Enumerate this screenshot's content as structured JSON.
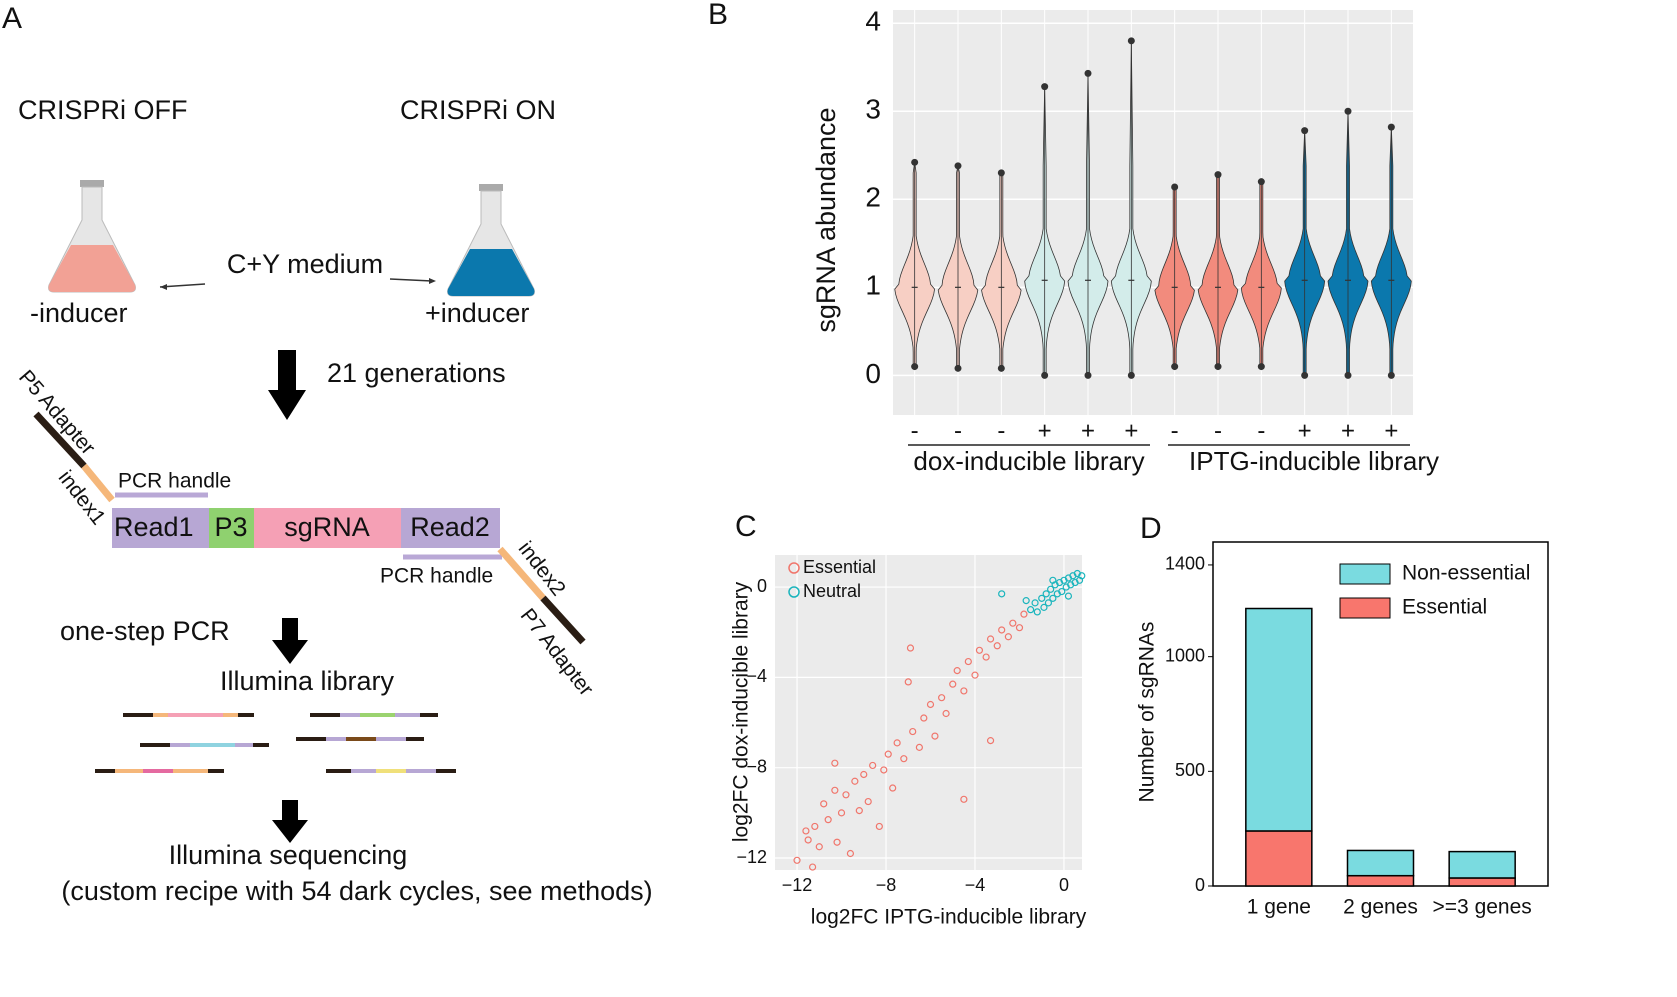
{
  "panels": [
    "A",
    "B",
    "C",
    "D"
  ],
  "panel_a": {
    "off": "CRISPRi OFF",
    "on": "CRISPRi ON",
    "medium": "C+Y medium",
    "minus": "-inducer",
    "plus": "+inducer",
    "generations": "21 generations",
    "p5": "P5 Adapter",
    "index1": "index1",
    "handle1": "PCR handle",
    "read1": "Read1",
    "p3": "P3",
    "sgrna": "sgRNA",
    "read2": "Read2",
    "handle2": "PCR handle",
    "index2": "index2",
    "p7": "P7 Adapter",
    "pcr": "one-step PCR",
    "library": "Illumina library",
    "sequencing": "Illumina sequencing",
    "recipe": "(custom recipe with 54 dark cycles, see methods)"
  },
  "chart_data": [
    {
      "type": "violin",
      "ylabel": "sgRNA abundance",
      "categories": [
        "-",
        "-",
        "-",
        "+",
        "+",
        "+",
        "-",
        "-",
        "-",
        "+",
        "+",
        "+"
      ],
      "colors": [
        "#f7cfc4",
        "#f7cfc4",
        "#f7cfc4",
        "#d3ecea",
        "#d3ecea",
        "#d3ecea",
        "#f28b7d",
        "#f28b7d",
        "#f28b7d",
        "#0b78ad",
        "#0b78ad",
        "#0b78ad"
      ],
      "median": [
        1.0,
        1.0,
        1.0,
        1.08,
        1.08,
        1.08,
        1.0,
        1.0,
        1.0,
        1.08,
        1.08,
        1.08
      ],
      "min": [
        0.1,
        0.08,
        0.08,
        0,
        0,
        0,
        0.1,
        0.1,
        0.1,
        0,
        0,
        0
      ],
      "max": [
        2.42,
        2.38,
        2.3,
        3.28,
        3.43,
        3.8,
        2.14,
        2.28,
        2.2,
        2.78,
        3.0,
        2.82
      ],
      "groups": [
        "dox-inducible library",
        "IPTG-inducible library"
      ],
      "ylim": [
        -0.45,
        4.15
      ],
      "yticks": [
        0,
        1,
        2,
        3,
        4
      ],
      "grid": true
    },
    {
      "type": "scatter",
      "xlabel": "log2FC IPTG-inducible library",
      "ylabel": "log2FC  dox-inducible library",
      "series": [
        {
          "name": "Essential",
          "color": "#f0766c",
          "x": [
            -12,
            -11.6,
            -11.5,
            -11.2,
            -11,
            -10.8,
            -10.6,
            -10.3,
            -10.2,
            -10,
            -9.8,
            -9.6,
            -9.4,
            -9.2,
            -9,
            -8.8,
            -8.6,
            -8.3,
            -8.1,
            -7.9,
            -7.7,
            -7.5,
            -7.2,
            -7,
            -6.9,
            -6.8,
            -6.5,
            -6.3,
            -6,
            -5.8,
            -5.5,
            -5.3,
            -5,
            -4.8,
            -4.5,
            -4.3,
            -4,
            -3.8,
            -3.5,
            -3.3,
            -3,
            -2.8,
            -2.5,
            -2.3,
            -2,
            -1.8,
            -4.5,
            -3.3,
            -10.3,
            -11.3
          ],
          "y": [
            -12.1,
            -10.8,
            -11.2,
            -10.6,
            -11.5,
            -9.6,
            -10.3,
            -9,
            -11.3,
            -10,
            -9.2,
            -11.8,
            -8.6,
            -9.9,
            -8.3,
            -9.5,
            -7.9,
            -10.6,
            -8.1,
            -7.4,
            -8.9,
            -6.9,
            -7.6,
            -4.2,
            -2.7,
            -6.4,
            -7.1,
            -5.8,
            -5.2,
            -6.6,
            -4.9,
            -5.6,
            -4.3,
            -3.7,
            -4.6,
            -3.3,
            -3.9,
            -2.8,
            -3.1,
            -2.3,
            -2.6,
            -1.9,
            -2.2,
            -1.6,
            -1.8,
            -1.2,
            -9.4,
            -6.8,
            -7.8,
            -12.4
          ]
        },
        {
          "name": "Neutral",
          "color": "#1bb5bd",
          "x": [
            -1.5,
            -1.3,
            -1.2,
            -1,
            -0.9,
            -0.8,
            -0.7,
            -0.6,
            -0.5,
            -0.4,
            -0.3,
            -0.2,
            -0.1,
            0,
            0.1,
            0.2,
            0.3,
            0.4,
            0.5,
            0.6,
            0.7,
            0.8,
            -2.8,
            -1.7,
            -0.5,
            0.2
          ],
          "y": [
            -1,
            -0.7,
            -1.1,
            -0.5,
            -0.9,
            -0.3,
            -0.7,
            -0.1,
            -0.5,
            0.1,
            -0.3,
            0.2,
            -0.2,
            0.3,
            0,
            0.4,
            0.1,
            0.5,
            0.2,
            0.6,
            0.3,
            0.5,
            -0.3,
            -0.6,
            0.3,
            -0.4
          ]
        }
      ],
      "xlim": [
        -12.99,
        0.81
      ],
      "ylim": [
        -12.53,
        1.42
      ],
      "xticks": [
        {
          "value": -12,
          "label": "−12"
        },
        {
          "value": -8,
          "label": "−8"
        },
        {
          "value": -4,
          "label": "−4"
        },
        0
      ],
      "yticks": [
        {
          "value": -12,
          "label": "−12"
        },
        {
          "value": -8,
          "label": "−8"
        },
        {
          "value": -4,
          "label": "−4"
        },
        0
      ],
      "grid": true,
      "legend": "top-left"
    },
    {
      "type": "stacked-bar",
      "ylabel": "Number of sgRNAs",
      "categories": [
        "1 gene",
        "2 genes",
        ">=3 genes"
      ],
      "series": [
        {
          "name": "Essential",
          "color": "#f8766d",
          "values": [
            240,
            45,
            35
          ]
        },
        {
          "name": "Non-essential",
          "color": "#7adbe0",
          "values": [
            970,
            110,
            115
          ]
        }
      ],
      "ylim": [
        0,
        1500
      ],
      "yticks": [
        0,
        500,
        1000,
        1400
      ],
      "legend": "top-right"
    }
  ]
}
